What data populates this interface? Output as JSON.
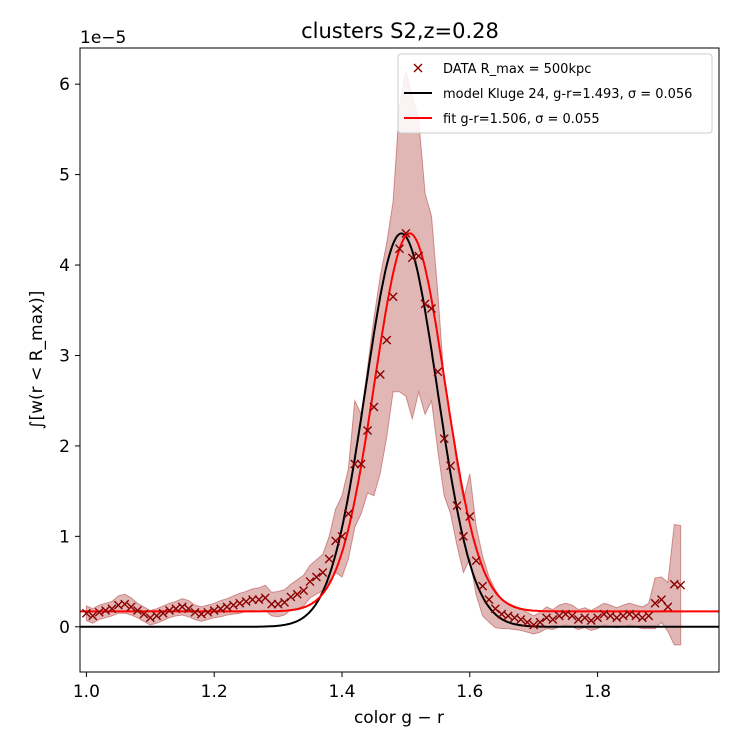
{
  "chart_data": {
    "type": "line",
    "title": "clusters S2,z=0.28",
    "xlabel": "color g − r",
    "ylabel": "∫[w(r < R_max)]",
    "y_multiplier": "1e−5",
    "xlim": [
      0.99,
      1.99
    ],
    "ylim": [
      -0.5,
      6.4
    ],
    "x_ticks": [
      "1.0",
      "1.2",
      "1.4",
      "1.6",
      "1.8"
    ],
    "y_ticks": [
      "0",
      "1",
      "2",
      "3",
      "4",
      "5",
      "6"
    ],
    "grid": false,
    "legend": {
      "position": "top-right",
      "entries": [
        {
          "label": "DATA R_max = 500kpc",
          "color": "#8b0000",
          "marker": "x"
        },
        {
          "label": "model Kluge 24, g-r=1.493, σ = 0.056",
          "color": "#000000",
          "marker": "line"
        },
        {
          "label": "fit g-r=1.506, σ = 0.055",
          "color": "#ff0000",
          "marker": "line"
        }
      ]
    },
    "series": [
      {
        "name": "DATA R_max = 500kpc",
        "kind": "scatter",
        "color": "#8b0000",
        "x": [
          1.0,
          1.01,
          1.02,
          1.03,
          1.04,
          1.05,
          1.06,
          1.07,
          1.08,
          1.09,
          1.1,
          1.11,
          1.12,
          1.13,
          1.14,
          1.15,
          1.16,
          1.17,
          1.18,
          1.19,
          1.2,
          1.21,
          1.22,
          1.23,
          1.24,
          1.25,
          1.26,
          1.27,
          1.28,
          1.29,
          1.3,
          1.31,
          1.32,
          1.33,
          1.34,
          1.35,
          1.36,
          1.37,
          1.38,
          1.39,
          1.4,
          1.41,
          1.42,
          1.43,
          1.44,
          1.45,
          1.46,
          1.47,
          1.48,
          1.49,
          1.5,
          1.51,
          1.52,
          1.53,
          1.54,
          1.55,
          1.56,
          1.57,
          1.58,
          1.59,
          1.6,
          1.61,
          1.62,
          1.63,
          1.64,
          1.65,
          1.66,
          1.67,
          1.68,
          1.69,
          1.7,
          1.71,
          1.72,
          1.73,
          1.74,
          1.75,
          1.76,
          1.77,
          1.78,
          1.79,
          1.8,
          1.81,
          1.82,
          1.83,
          1.84,
          1.85,
          1.86,
          1.87,
          1.88,
          1.89,
          1.9,
          1.91,
          1.92,
          1.93
        ],
        "y": [
          0.15,
          0.12,
          0.16,
          0.18,
          0.2,
          0.24,
          0.25,
          0.22,
          0.18,
          0.14,
          0.1,
          0.12,
          0.15,
          0.18,
          0.2,
          0.22,
          0.2,
          0.16,
          0.14,
          0.16,
          0.18,
          0.2,
          0.22,
          0.24,
          0.26,
          0.28,
          0.3,
          0.3,
          0.32,
          0.25,
          0.25,
          0.27,
          0.33,
          0.36,
          0.4,
          0.5,
          0.55,
          0.6,
          0.75,
          0.95,
          1.0,
          1.25,
          1.8,
          1.8,
          2.17,
          2.43,
          2.79,
          3.17,
          3.65,
          4.18,
          4.35,
          4.08,
          4.1,
          3.57,
          3.52,
          2.82,
          2.08,
          1.78,
          1.34,
          1.0,
          1.22,
          0.73,
          0.45,
          0.3,
          0.2,
          0.14,
          0.12,
          0.1,
          0.08,
          0.05,
          0.02,
          0.05,
          0.1,
          0.08,
          0.12,
          0.14,
          0.12,
          0.08,
          0.1,
          0.07,
          0.1,
          0.14,
          0.12,
          0.1,
          0.12,
          0.14,
          0.12,
          0.1,
          0.12,
          0.26,
          0.3,
          0.22,
          0.47,
          0.46
        ]
      },
      {
        "name": "DATA R_max = 500kpc",
        "kind": "band",
        "color": "#b85450",
        "x": [
          1.0,
          1.01,
          1.02,
          1.03,
          1.04,
          1.05,
          1.06,
          1.07,
          1.08,
          1.09,
          1.1,
          1.11,
          1.12,
          1.13,
          1.14,
          1.15,
          1.16,
          1.17,
          1.18,
          1.19,
          1.2,
          1.21,
          1.22,
          1.23,
          1.24,
          1.25,
          1.26,
          1.27,
          1.28,
          1.29,
          1.3,
          1.31,
          1.32,
          1.33,
          1.34,
          1.35,
          1.36,
          1.37,
          1.38,
          1.39,
          1.4,
          1.41,
          1.42,
          1.43,
          1.44,
          1.45,
          1.46,
          1.47,
          1.48,
          1.49,
          1.5,
          1.51,
          1.52,
          1.53,
          1.54,
          1.55,
          1.56,
          1.57,
          1.58,
          1.59,
          1.6,
          1.61,
          1.62,
          1.63,
          1.64,
          1.65,
          1.66,
          1.67,
          1.68,
          1.69,
          1.7,
          1.71,
          1.72,
          1.73,
          1.74,
          1.75,
          1.76,
          1.77,
          1.78,
          1.79,
          1.8,
          1.81,
          1.82,
          1.83,
          1.84,
          1.85,
          1.86,
          1.87,
          1.88,
          1.89,
          1.9,
          1.91,
          1.92,
          1.93
        ],
        "lower": [
          0.07,
          0.04,
          0.08,
          0.1,
          0.12,
          0.15,
          0.15,
          0.13,
          0.1,
          0.06,
          0.02,
          0.04,
          0.07,
          0.1,
          0.12,
          0.13,
          0.11,
          0.08,
          0.06,
          0.08,
          0.1,
          0.11,
          0.13,
          0.14,
          0.15,
          0.17,
          0.18,
          0.17,
          0.18,
          0.12,
          0.11,
          0.13,
          0.19,
          0.2,
          0.23,
          0.32,
          0.36,
          0.4,
          0.5,
          0.6,
          0.55,
          0.75,
          1.1,
          1.25,
          1.48,
          1.45,
          1.7,
          2.1,
          2.6,
          2.6,
          2.55,
          2.3,
          2.6,
          2.35,
          2.5,
          1.95,
          1.45,
          1.25,
          0.9,
          0.6,
          0.75,
          0.35,
          0.12,
          0.05,
          -0.01,
          -0.02,
          -0.02,
          -0.03,
          -0.04,
          -0.06,
          -0.08,
          -0.06,
          -0.02,
          -0.03,
          0.0,
          0.02,
          0.0,
          -0.03,
          -0.01,
          -0.04,
          -0.02,
          0.02,
          0.0,
          -0.01,
          0.0,
          0.02,
          0.0,
          -0.02,
          -0.02,
          -0.02,
          0.05,
          -0.05,
          -0.2,
          -0.2
        ],
        "upper": [
          0.23,
          0.2,
          0.24,
          0.26,
          0.28,
          0.34,
          0.36,
          0.32,
          0.26,
          0.22,
          0.18,
          0.2,
          0.23,
          0.26,
          0.28,
          0.31,
          0.29,
          0.24,
          0.22,
          0.24,
          0.26,
          0.29,
          0.31,
          0.34,
          0.37,
          0.39,
          0.42,
          0.43,
          0.46,
          0.38,
          0.39,
          0.41,
          0.47,
          0.52,
          0.57,
          0.68,
          0.74,
          0.8,
          1.0,
          1.3,
          1.45,
          1.75,
          2.5,
          2.35,
          2.86,
          3.41,
          3.88,
          4.24,
          4.7,
          5.76,
          6.15,
          5.86,
          5.6,
          4.79,
          4.54,
          3.69,
          2.71,
          2.31,
          1.78,
          1.4,
          1.69,
          1.11,
          0.78,
          0.55,
          0.41,
          0.3,
          0.26,
          0.23,
          0.2,
          0.16,
          0.12,
          0.16,
          0.22,
          0.19,
          0.24,
          0.26,
          0.24,
          0.19,
          0.21,
          0.18,
          0.22,
          0.26,
          0.24,
          0.21,
          0.24,
          0.26,
          0.24,
          0.22,
          0.26,
          0.54,
          0.55,
          0.49,
          1.13,
          1.12
        ]
      },
      {
        "name": "model Kluge 24, g-r=1.493, σ = 0.056",
        "kind": "gaussian",
        "color": "#000000",
        "center": 1.493,
        "sigma": 0.056,
        "amplitude": 4.35,
        "baseline": 0.0
      },
      {
        "name": "fit g-r=1.506, σ = 0.055",
        "kind": "gaussian",
        "color": "#ff0000",
        "center": 1.506,
        "sigma": 0.055,
        "amplitude": 4.18,
        "baseline": 0.17
      }
    ]
  }
}
